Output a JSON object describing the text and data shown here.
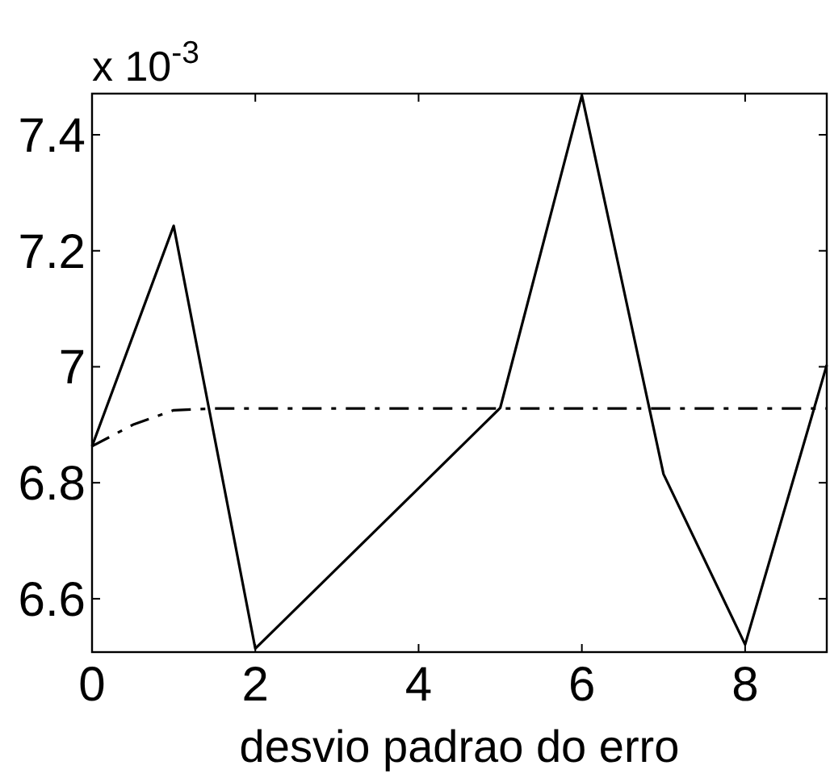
{
  "chart_data": {
    "type": "line",
    "xlabel": "desvio padrao do erro",
    "annotations": [
      "x 10$^{-3}$"
    ],
    "xlim": [
      0,
      9
    ],
    "xticks": [
      0,
      2,
      4,
      6,
      8
    ],
    "ylim": [
      6.508,
      7.471
    ],
    "yticks": [
      6.6,
      6.8,
      7,
      7.2,
      7.4
    ],
    "grid": false,
    "marker": "none",
    "series": [
      {
        "color": "#000000",
        "x": [
          0,
          1,
          2,
          5,
          6,
          7,
          8,
          9
        ],
        "values": [
          6.863,
          7.243,
          6.514,
          6.929,
          7.468,
          6.815,
          6.521,
          7.003
        ],
        "line_style": "solid"
      },
      {
        "color": "#000000",
        "x": [
          0,
          0.5,
          1,
          1.5,
          9
        ],
        "values": [
          6.863,
          6.9,
          6.925,
          6.928,
          6.928
        ],
        "line_style": "dashed"
      }
    ]
  }
}
